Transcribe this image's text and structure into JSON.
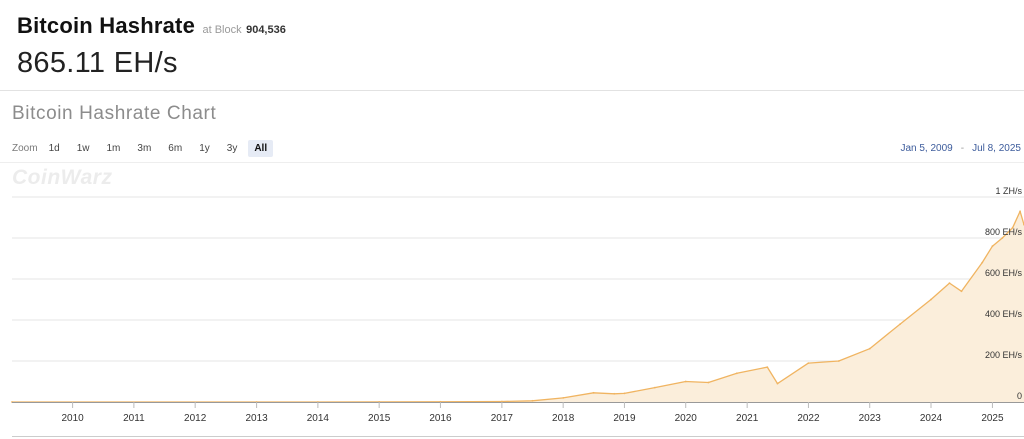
{
  "header": {
    "title": "Bitcoin Hashrate",
    "at_block_label": "at Block",
    "block_number": "904,536",
    "current_value": "865.11 EH/s"
  },
  "chart_panel": {
    "title": "Bitcoin Hashrate Chart",
    "watermark": "CoinWarz",
    "zoom_label": "Zoom",
    "zoom_options": [
      "1d",
      "1w",
      "1m",
      "3m",
      "6m",
      "1y",
      "3y",
      "All"
    ],
    "zoom_selected": "All",
    "range_start": "Jan 5, 2009",
    "range_separator": "-",
    "range_end": "Jul 8, 2025"
  },
  "colors": {
    "line": "#f0b461",
    "area": "#fbeedb",
    "grid": "#e6e6e6",
    "axis_text": "#333333"
  },
  "chart_data": {
    "type": "area",
    "title": "Bitcoin Hashrate Chart",
    "xlabel": "",
    "ylabel": "",
    "y_unit": "EH/s",
    "ylim": [
      0,
      1000
    ],
    "xlim": [
      "2009-01-05",
      "2025-07-08"
    ],
    "x_tick_labels": [
      "2010",
      "2011",
      "2012",
      "2013",
      "2014",
      "2015",
      "2016",
      "2017",
      "2018",
      "2019",
      "2020",
      "2021",
      "2022",
      "2023",
      "2024",
      "2025"
    ],
    "y_ticks": [
      0,
      200,
      400,
      600,
      800,
      1000
    ],
    "y_tick_labels": [
      "0",
      "200 EH/s",
      "400 EH/s",
      "600 EH/s",
      "800 EH/s",
      "1 ZH/s"
    ],
    "grid": true,
    "legend": "none",
    "series": [
      {
        "x": [
          "2009-01-05",
          "2013-01-01",
          "2014-01-01",
          "2015-01-01",
          "2016-01-01",
          "2017-01-01",
          "2017-07-01",
          "2018-01-01",
          "2018-07-01",
          "2018-11-01",
          "2019-01-01",
          "2019-07-01",
          "2020-01-01",
          "2020-05-15",
          "2020-11-01",
          "2021-05-01",
          "2021-07-01",
          "2022-01-01",
          "2022-07-01",
          "2023-01-01",
          "2023-07-01",
          "2024-01-01",
          "2024-04-20",
          "2024-07-01",
          "2024-11-01",
          "2025-01-01",
          "2025-03-01",
          "2025-05-01",
          "2025-06-15",
          "2025-07-08"
        ],
        "y": [
          0,
          0.03,
          0.01,
          0.3,
          0.8,
          2.5,
          6,
          20,
          45,
          40,
          42,
          70,
          100,
          95,
          140,
          170,
          90,
          190,
          200,
          260,
          380,
          500,
          580,
          540,
          680,
          760,
          800,
          850,
          930,
          865
        ]
      }
    ],
    "current_value": "865.11 EH/s"
  }
}
